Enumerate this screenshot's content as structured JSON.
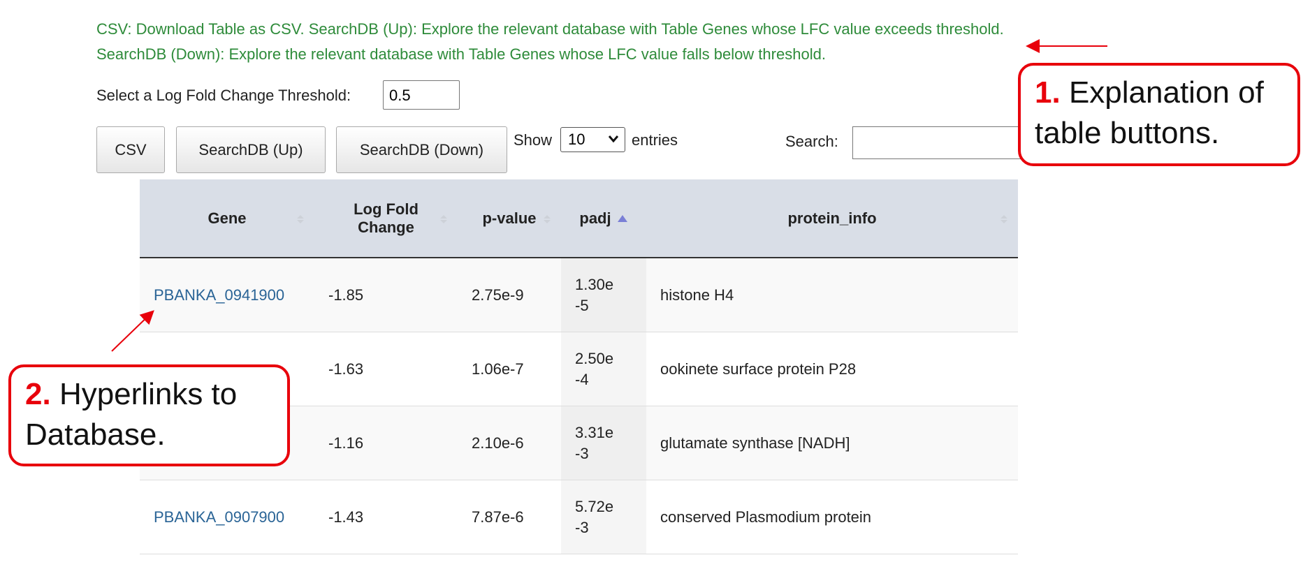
{
  "description": "CSV: Download Table as CSV. SearchDB (Up): Explore the relevant database with Table Genes whose LFC value exceeds threshold. SearchDB (Down): Explore the relevant database with Table Genes whose LFC value falls below threshold.",
  "threshold": {
    "label": "Select a Log Fold Change Threshold:",
    "value": "0.5"
  },
  "buttons": [
    "CSV",
    "SearchDB (Up)",
    "SearchDB (Down)"
  ],
  "length": {
    "show": "Show",
    "value": "10",
    "entries": "entries"
  },
  "search": {
    "label": "Search:"
  },
  "table": {
    "columns": [
      "Gene",
      "Log Fold Change",
      "p-value",
      "padj",
      "protein_info"
    ],
    "rows": [
      {
        "gene": "PBANKA_0941900",
        "lfc": "-1.85",
        "pvalue": "2.75e-9",
        "padj": "1.30e-5",
        "protein_info": "histone H4"
      },
      {
        "lfc": "-1.63",
        "pvalue": "1.06e-7",
        "padj": "2.50e-4",
        "protein_info": "ookinete surface protein P28"
      },
      {
        "lfc": "-1.16",
        "pvalue": "2.10e-6",
        "padj": "3.31e-3",
        "protein_info": "glutamate synthase [NADH]"
      },
      {
        "gene": "PBANKA_0907900",
        "lfc": "-1.43",
        "pvalue": "7.87e-6",
        "padj": "5.72e-3",
        "protein_info": "conserved Plasmodium protein"
      }
    ]
  },
  "annotations": [
    {
      "number": "1.",
      "text": "Explanation of table buttons."
    },
    {
      "number": "2.",
      "text": "Hyperlinks to Database."
    }
  ]
}
